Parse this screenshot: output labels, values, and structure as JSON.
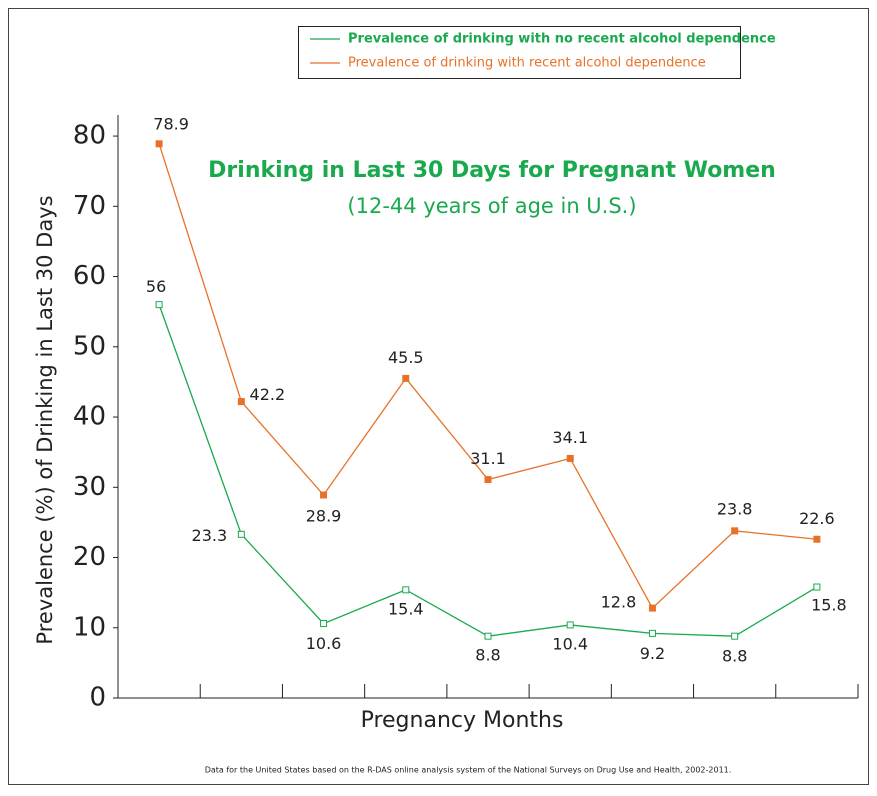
{
  "chart_data": {
    "type": "line",
    "title": "Drinking in Last 30 Days for Pregnant Women",
    "subtitle": "(12-44 years of age in U.S.)",
    "x_label": "Pregnancy Months",
    "y_label": "Prevalence (%) of Drinking in Last 30 Days",
    "footnote": "Data for the United States based on the R-DAS online analysis system of the National Surveys on Drug Use and Health, 2002-2011.",
    "categories": [
      null,
      null,
      null,
      null,
      null,
      null,
      null,
      null,
      null
    ],
    "series": [
      {
        "name": "Prevalence of drinking with no recent alcohol dependence",
        "color": "#1aa94e",
        "values": [
          56,
          23.3,
          10.6,
          15.4,
          8.8,
          10.4,
          9.2,
          8.8,
          15.8
        ]
      },
      {
        "name": "Prevalence of drinking with recent alcohol dependence",
        "color": "#e8712a",
        "values": [
          78.9,
          42.2,
          28.9,
          45.5,
          31.1,
          34.1,
          12.8,
          23.8,
          22.6
        ]
      }
    ],
    "ylim": [
      0,
      83
    ],
    "yticks": [
      0,
      10,
      20,
      30,
      40,
      50,
      60,
      70,
      80
    ],
    "legend": "top",
    "grid": false
  }
}
